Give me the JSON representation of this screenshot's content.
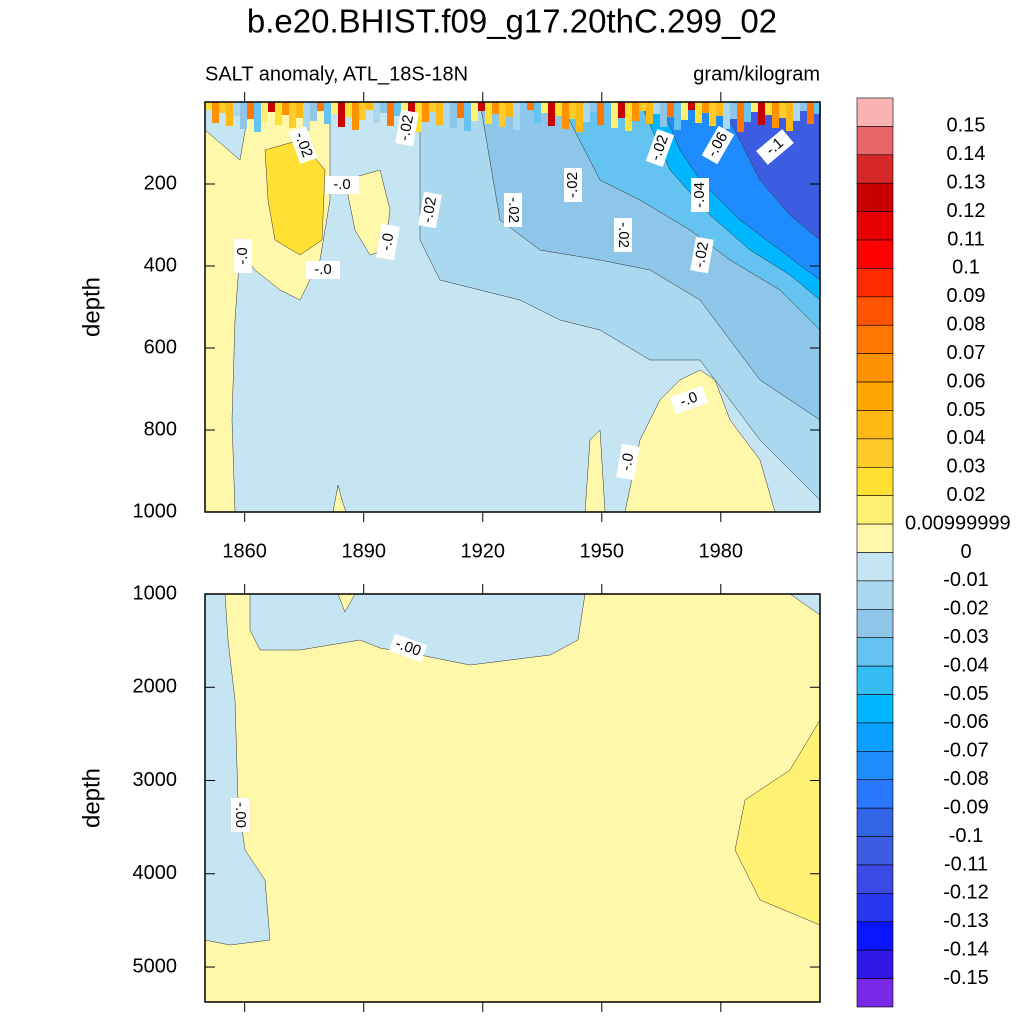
{
  "chart_data": {
    "type": "contour",
    "title": "b.e20.BHIST.f09_g17.20thC.299_02",
    "subtitle_left": "SALT anomaly, ATL_18S-18N",
    "subtitle_right": "gram/kilogram",
    "xlim": [
      1850,
      2005
    ],
    "xticks": [
      1860,
      1890,
      1920,
      1950,
      1980
    ],
    "panels": [
      {
        "ylabel": "depth",
        "ylim": [
          0,
          1000
        ],
        "yticks": [
          200,
          400,
          600,
          800,
          1000
        ],
        "contour_labels": [
          "-.02",
          "-.02",
          "-.0",
          "-.02",
          "-.02",
          "-.02",
          "-.02",
          "-.02",
          "-.06",
          "-.1",
          "-.04",
          "-.02",
          "-.0",
          "-.0",
          "-.0",
          "-.0",
          "-.0"
        ]
      },
      {
        "ylabel": "depth",
        "ylim": [
          1000,
          5375
        ],
        "yticks": [
          1000,
          2000,
          3000,
          4000,
          5000
        ],
        "contour_labels": [
          "-.00",
          "-.00"
        ]
      }
    ],
    "colorbar": {
      "levels": [
        0.15,
        0.14,
        0.13,
        0.12,
        0.11,
        0.1,
        0.09,
        0.08,
        0.07,
        0.06,
        0.05,
        0.04,
        0.03,
        0.02,
        {
          "value": 0.01,
          "label": "0.00999999"
        },
        0,
        -0.01,
        -0.02,
        -0.03,
        -0.04,
        -0.05,
        -0.06,
        -0.07,
        -0.08,
        -0.09,
        -0.1,
        -0.11,
        -0.12,
        -0.13,
        -0.14,
        -0.15
      ],
      "colors": [
        "#f9b3b3",
        "#e8666a",
        "#d62828",
        "#c80000",
        "#e60000",
        "#ff0000",
        "#ff2a00",
        "#ff5400",
        "#ff7700",
        "#ff9200",
        "#ffa500",
        "#ffb914",
        "#ffcb2a",
        "#ffe033",
        "#fff172",
        "#fff7aa",
        "#c6e5f3",
        "#a9d8ef",
        "#8ec6ea",
        "#64c3f0",
        "#33bdf4",
        "#00b6ff",
        "#0aa0ff",
        "#1e8cff",
        "#2a78ff",
        "#3264e6",
        "#3c5ce1",
        "#3c4be6",
        "#2838f0",
        "#0a14ff",
        "#3218e6",
        "#7828e6"
      ]
    }
  }
}
